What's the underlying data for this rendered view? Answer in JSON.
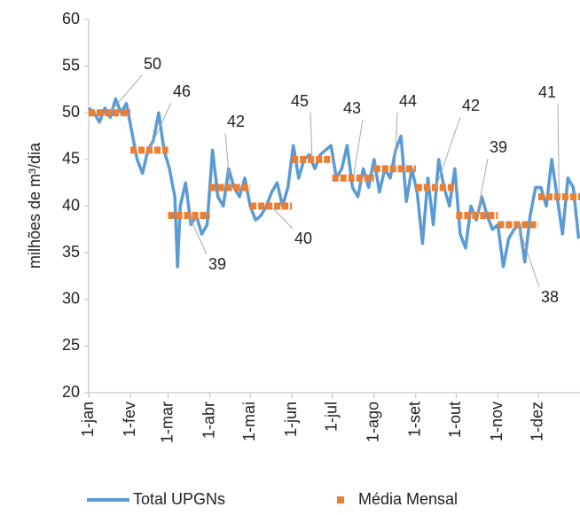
{
  "chart_data": {
    "type": "line",
    "y_label": "milhões de m³/dia",
    "xlim": [
      0,
      365
    ],
    "xticks": [
      {
        "value": 0,
        "label": "1-jan"
      },
      {
        "value": 31,
        "label": "1-fev"
      },
      {
        "value": 59,
        "label": "1-mar"
      },
      {
        "value": 90,
        "label": "1-abr"
      },
      {
        "value": 120,
        "label": "1-mai"
      },
      {
        "value": 151,
        "label": "1-jun"
      },
      {
        "value": 181,
        "label": "1-jul"
      },
      {
        "value": 212,
        "label": "1-ago"
      },
      {
        "value": 243,
        "label": "1-set"
      },
      {
        "value": 273,
        "label": "1-out"
      },
      {
        "value": 304,
        "label": "1-nov"
      },
      {
        "value": 334,
        "label": "1-dez"
      }
    ],
    "ylim": [
      20,
      60
    ],
    "yticks": [
      20,
      25,
      30,
      35,
      40,
      45,
      50,
      55,
      60
    ],
    "series": [
      {
        "name": "Total UPGNs",
        "color": "#5b9bd5",
        "x": [
          0,
          4,
          8,
          12,
          16,
          20,
          24,
          28,
          32,
          36,
          40,
          44,
          48,
          52,
          56,
          60,
          64,
          66,
          68,
          72,
          76,
          80,
          84,
          88,
          92,
          96,
          100,
          104,
          108,
          112,
          116,
          120,
          124,
          128,
          132,
          136,
          140,
          144,
          148,
          152,
          156,
          160,
          164,
          168,
          172,
          176,
          180,
          184,
          188,
          192,
          196,
          200,
          204,
          208,
          212,
          216,
          220,
          224,
          228,
          232,
          236,
          240,
          244,
          248,
          252,
          256,
          260,
          264,
          268,
          272,
          276,
          280,
          284,
          288,
          292,
          296,
          300,
          304,
          308,
          312,
          316,
          320,
          324,
          328,
          332,
          336,
          340,
          344,
          348,
          352,
          356,
          360,
          364
        ],
        "values": [
          50.5,
          50,
          49,
          50.5,
          49.5,
          51.5,
          50,
          51,
          48,
          45,
          43.5,
          46,
          47,
          50,
          46,
          44,
          41,
          33.5,
          40,
          42.5,
          38,
          39,
          37,
          38,
          46,
          41,
          40,
          44,
          42,
          41,
          43,
          40,
          38.5,
          39,
          40,
          41.5,
          42.5,
          40,
          42,
          46.5,
          43,
          45,
          45.5,
          44,
          45.5,
          46,
          46.5,
          43,
          44,
          46.5,
          42,
          41,
          44,
          42,
          45,
          41.5,
          44,
          43,
          46,
          47.5,
          40.5,
          44,
          41.5,
          36,
          43,
          38,
          45,
          42,
          40,
          44,
          37,
          35.5,
          40,
          38.5,
          41,
          39,
          37.5,
          38,
          33.5,
          36.5,
          37.5,
          38,
          34,
          39,
          42,
          42,
          40,
          45,
          41,
          37,
          43,
          42,
          36.5
        ]
      },
      {
        "name": "Média Mensal",
        "color": "#ed7d31",
        "x": [
          0,
          31,
          59,
          90,
          120,
          151,
          181,
          212,
          243,
          273,
          304,
          334
        ],
        "values": [
          50,
          46,
          39,
          42,
          40,
          45,
          43,
          44,
          42,
          39,
          38,
          41
        ]
      }
    ]
  }
}
